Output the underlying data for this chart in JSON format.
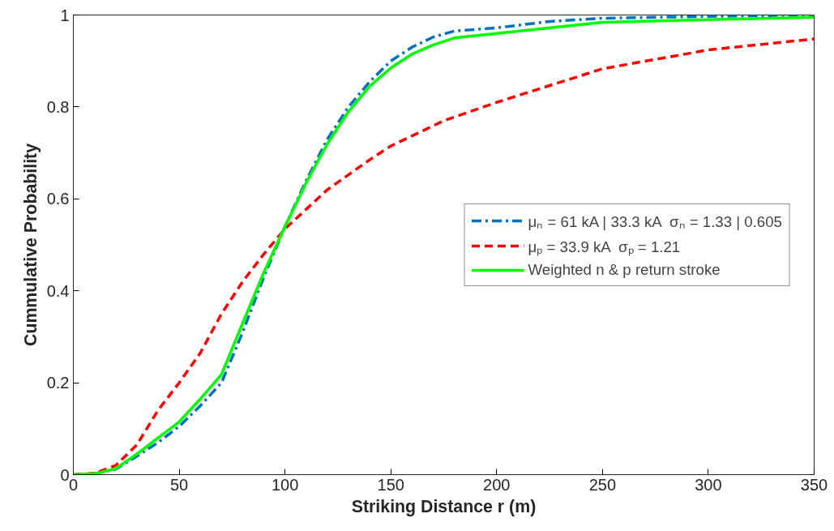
{
  "chart_data": {
    "type": "line",
    "xlabel": "Striking Distance r (m)",
    "ylabel": "Cummulative Probability",
    "xlim": [
      0,
      350
    ],
    "ylim": [
      0,
      1
    ],
    "xticks": [
      0,
      50,
      100,
      150,
      200,
      250,
      300,
      350
    ],
    "yticks": [
      0,
      0.2,
      0.4,
      0.6,
      0.8,
      1
    ],
    "grid": false,
    "legend": "right",
    "series": [
      {
        "name": "μₙ = 61 kA | 33.3 kA  σₙ = 1.33 | 0.605",
        "color": "#0072bd",
        "line_style": "dashdot",
        "x": [
          0,
          10,
          20,
          30,
          40,
          50,
          60,
          70,
          80,
          90,
          100,
          110,
          120,
          130,
          140,
          150,
          160,
          170,
          180,
          200,
          225,
          250,
          300,
          350
        ],
        "values": [
          0,
          0.002,
          0.012,
          0.04,
          0.07,
          0.105,
          0.15,
          0.2,
          0.31,
          0.43,
          0.54,
          0.64,
          0.73,
          0.8,
          0.855,
          0.9,
          0.93,
          0.952,
          0.965,
          0.972,
          0.986,
          0.993,
          0.997,
          1.0
        ]
      },
      {
        "name": "μₚ = 33.9 kA  σₚ = 1.21",
        "color": "#ff0000",
        "line_style": "dashed",
        "x": [
          0,
          10,
          20,
          30,
          40,
          50,
          60,
          70,
          80,
          90,
          100,
          120,
          140,
          150,
          175,
          200,
          250,
          300,
          350
        ],
        "values": [
          0,
          0.003,
          0.02,
          0.065,
          0.14,
          0.2,
          0.265,
          0.35,
          0.42,
          0.48,
          0.535,
          0.62,
          0.685,
          0.715,
          0.77,
          0.81,
          0.883,
          0.924,
          0.948
        ]
      },
      {
        "name": "Weighted n & p return stroke",
        "color": "#00ff00",
        "line_style": "solid",
        "x": [
          0,
          10,
          20,
          30,
          40,
          50,
          60,
          70,
          80,
          90,
          100,
          110,
          120,
          130,
          140,
          150,
          160,
          170,
          180,
          200,
          250,
          300,
          350
        ],
        "values": [
          0,
          0.002,
          0.013,
          0.045,
          0.08,
          0.115,
          0.165,
          0.218,
          0.33,
          0.44,
          0.54,
          0.635,
          0.72,
          0.79,
          0.845,
          0.885,
          0.915,
          0.935,
          0.95,
          0.96,
          0.984,
          0.99,
          0.995
        ]
      }
    ]
  }
}
